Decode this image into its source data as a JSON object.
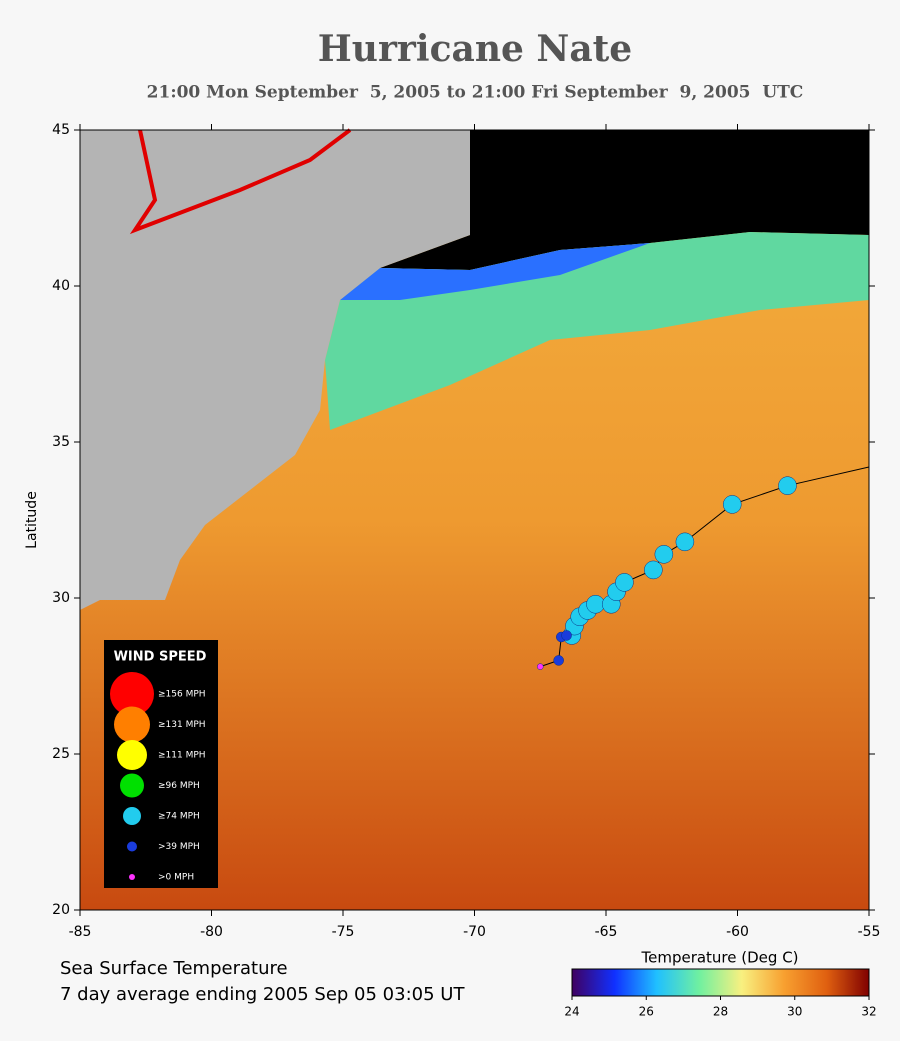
{
  "chart_data": {
    "type": "scatter",
    "title": "Hurricane Nate",
    "subtitle": "21:00 Mon September  5, 2005 to 21:00 Fri September  9, 2005  UTC",
    "ylabel": "Latitude",
    "xlim": [
      -85,
      -55
    ],
    "ylim": [
      20,
      45
    ],
    "xticks": [
      -85,
      -80,
      -75,
      -70,
      -65,
      -60,
      -55
    ],
    "yticks": [
      20,
      25,
      30,
      35,
      40,
      45
    ],
    "legend_title": "WIND SPEED",
    "track": {
      "color": "#000000",
      "x": [
        -67.5,
        -66.8,
        -66.7,
        -66.5,
        -66.3,
        -66.2,
        -66.0,
        -65.7,
        -65.4,
        -64.8,
        -64.6,
        -64.3,
        -63.2,
        -62.8,
        -62.0,
        -60.2,
        -58.1,
        -55.0
      ],
      "y": [
        27.8,
        28.0,
        28.75,
        28.8,
        28.8,
        29.1,
        29.4,
        29.6,
        29.8,
        29.8,
        30.2,
        30.5,
        30.9,
        31.4,
        31.8,
        33.0,
        33.6,
        34.2
      ]
    },
    "series": [
      {
        "name": "≥156 MPH",
        "color": "#ff0000",
        "x": [],
        "y": []
      },
      {
        "name": "≥131 MPH",
        "color": "#ff7f00",
        "x": [],
        "y": []
      },
      {
        "name": "≥111 MPH",
        "color": "#ffff00",
        "x": [],
        "y": []
      },
      {
        "name": "≥96 MPH",
        "color": "#00e000",
        "x": [],
        "y": []
      },
      {
        "name": "≥74 MPH",
        "color": "#22ccee",
        "x": [
          -66.3,
          -66.2,
          -66.0,
          -65.7,
          -65.4,
          -64.8,
          -64.6,
          -64.3,
          -63.2,
          -62.8,
          -62.0,
          -60.2,
          -58.1
        ],
        "y": [
          28.8,
          29.1,
          29.4,
          29.6,
          29.8,
          29.8,
          30.2,
          30.5,
          30.9,
          31.4,
          31.8,
          33.0,
          33.6
        ]
      },
      {
        "name": ">39 MPH",
        "color": "#1a3cdc",
        "x": [
          -66.8,
          -66.7,
          -66.5
        ],
        "y": [
          28.0,
          28.75,
          28.8
        ]
      },
      {
        "name": ">0 MPH",
        "color": "#ff33ff",
        "x": [
          -67.5
        ],
        "y": [
          27.8
        ]
      }
    ],
    "colorbar": {
      "label": "Temperature (Deg C)",
      "lim": [
        24,
        32
      ],
      "ticks": [
        24,
        26,
        28,
        30,
        32
      ],
      "colors": [
        "#400060",
        "#1030ff",
        "#20c0ff",
        "#70f0a0",
        "#f8f080",
        "#f8a030",
        "#e06010",
        "#800000"
      ]
    },
    "footer": [
      "Sea Surface Temperature",
      "7 day average ending 2005 Sep 05 03:05 UT"
    ]
  }
}
